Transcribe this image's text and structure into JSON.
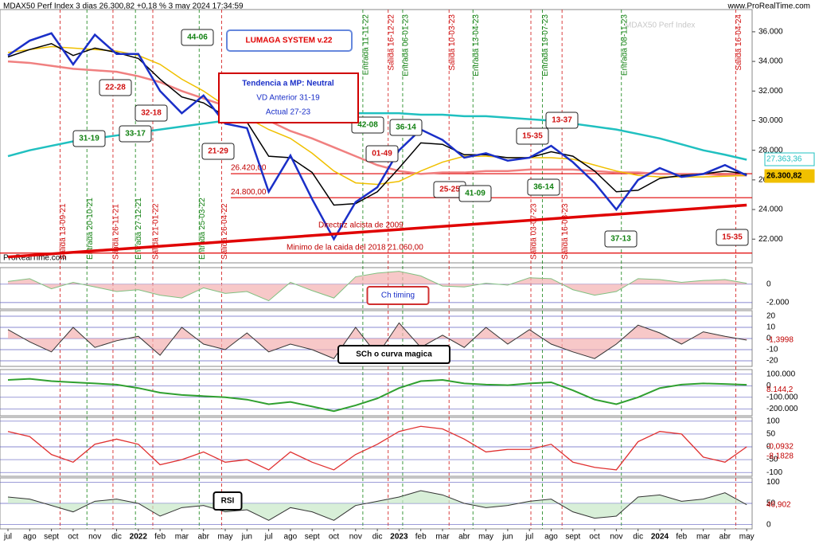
{
  "header": {
    "title": "MDAX50 Perf Index 3 dias 26.300,82 +0,18 % 3 may 2024 17:34:59",
    "site": "www.ProRealTime.com",
    "watermark": "MDAX50 Perf Index",
    "footer": "ProRealTime.com"
  },
  "chart_data": [
    {
      "type": "line",
      "categories": [
        "jul",
        "ago",
        "sept",
        "oct",
        "nov",
        "dic",
        "2022",
        "feb",
        "mar",
        "abr",
        "may",
        "jun",
        "jul",
        "ago",
        "sept",
        "oct",
        "nov",
        "dic",
        "2023",
        "feb",
        "mar",
        "abr",
        "may",
        "jun",
        "jul",
        "ago",
        "sept",
        "oct",
        "nov",
        "dic",
        "2024",
        "feb",
        "mar",
        "abr",
        "may"
      ],
      "ylim": [
        20400,
        37500
      ],
      "yticks": [
        {
          "value": 22000,
          "label": "22.000"
        },
        {
          "value": 24000,
          "label": "24.000"
        },
        {
          "value": 26000,
          "label": "26.000"
        },
        {
          "value": 28000,
          "label": "28.000"
        },
        {
          "value": 30000,
          "label": "30.000"
        },
        {
          "value": 32000,
          "label": "32.000"
        },
        {
          "value": 34000,
          "label": "34.000"
        },
        {
          "value": 36000,
          "label": "36.000"
        }
      ],
      "series": [
        {
          "color": "#f08080",
          "values": [
            34000,
            33900,
            33700,
            33500,
            33400,
            33300,
            33000,
            32600,
            32000,
            31500,
            31000,
            30500,
            30000,
            29300,
            28800,
            28200,
            27600,
            27000,
            26600,
            26400,
            26500,
            26500,
            26600,
            26600,
            26700,
            26700,
            26700,
            26600,
            26500,
            26500,
            26400,
            26400,
            26400,
            26300,
            26300
          ]
        },
        {
          "color": "#20c0c0",
          "values": [
            27600,
            28000,
            28300,
            28600,
            28800,
            29000,
            29200,
            29400,
            29600,
            29800,
            30000,
            30100,
            30200,
            30300,
            30400,
            30400,
            30500,
            30500,
            30500,
            30400,
            30400,
            30300,
            30300,
            30200,
            30100,
            30000,
            29800,
            29600,
            29400,
            29100,
            28800,
            28400,
            28000,
            27700,
            27363
          ]
        },
        {
          "color": "#f0c000",
          "values": [
            34600,
            34800,
            35000,
            34900,
            34800,
            34700,
            34400,
            33800,
            32800,
            32000,
            31000,
            30200,
            29400,
            28800,
            27800,
            26600,
            25800,
            25700,
            25900,
            26600,
            27200,
            27600,
            27600,
            27500,
            27500,
            27500,
            27400,
            27000,
            26600,
            26300,
            26200,
            26200,
            26200,
            26250,
            26300
          ]
        },
        {
          "color": "#000000",
          "values": [
            34300,
            34800,
            35200,
            34400,
            34900,
            34600,
            34200,
            32800,
            31600,
            31200,
            30300,
            29900,
            27600,
            27500,
            26500,
            24300,
            24400,
            25200,
            26800,
            28500,
            28400,
            27700,
            27700,
            27500,
            27500,
            27900,
            27600,
            26600,
            25200,
            25300,
            26100,
            26300,
            26400,
            26600,
            26400
          ]
        },
        {
          "color": "#1a2fc8",
          "values": [
            34400,
            35400,
            35900,
            33800,
            35800,
            34500,
            34500,
            32000,
            30500,
            31700,
            29800,
            29500,
            25200,
            27650,
            24700,
            22000,
            24500,
            25500,
            28000,
            29400,
            28700,
            27500,
            27800,
            27300,
            27500,
            28300,
            27200,
            25800,
            24000,
            26000,
            26800,
            26200,
            26400,
            27000,
            26300
          ]
        }
      ],
      "levels": [
        {
          "value": 26420,
          "label": "26.420,00"
        },
        {
          "value": 24800,
          "label": "24.800,00"
        },
        {
          "value": 21060,
          "label": "Minimo de la caida del 2018  21.060,00"
        }
      ],
      "trend": {
        "label": "Directriz alcista de 2009",
        "values": [
          20800,
          24300
        ],
        "color": "#e00000"
      },
      "exit_color": "#d01010",
      "entry_color": "#108010",
      "exits": [
        "Salida 13-09-21",
        "Salida 26-11-21",
        "Salida 21-01-22",
        "Salida 26-04-22",
        "Salida 16-12-22",
        "Salida 10-03-23",
        "Salida 03-07-23",
        "Salida 16-08-23",
        "Salida 16-04-24"
      ],
      "entries": [
        "Entrada 20-10-21",
        "Entrada 27-12-21",
        "Entrada 25-03-22",
        "Entrada 11-11-22",
        "Entrada 06-01-23",
        "Entrada 13-04-23",
        "Entrada 19-07-23",
        "Entrada 08-11-23"
      ],
      "boxes": [
        {
          "label": "44-06",
          "color": "#108010"
        },
        {
          "label": "22-28",
          "color": "#d01010"
        },
        {
          "label": "32-18",
          "color": "#d01010"
        },
        {
          "label": "31-19",
          "color": "#108010"
        },
        {
          "label": "33-17",
          "color": "#108010"
        },
        {
          "label": "21-29",
          "color": "#d01010"
        },
        {
          "label": "42-08",
          "color": "#108010"
        },
        {
          "label": "36-14",
          "color": "#108010"
        },
        {
          "label": "01-49",
          "color": "#d01010"
        },
        {
          "label": "15-35",
          "color": "#d01010"
        },
        {
          "label": "13-37",
          "color": "#d01010"
        },
        {
          "label": "25-25",
          "color": "#d01010"
        },
        {
          "label": "41-09",
          "color": "#108010"
        },
        {
          "label": "36-14",
          "color": "#108010"
        },
        {
          "label": "37-13",
          "color": "#108010"
        },
        {
          "label": "15-35",
          "color": "#d01010"
        }
      ],
      "system": "LUMAGA SYSTEM v.22",
      "trend_box": [
        "Tendencia a MP: Neutral",
        "VD Anterior 31-19",
        "Actual 27-23"
      ],
      "last_labels": [
        {
          "text": "27.363,36",
          "color": "#20c0c0"
        },
        {
          "text": "26.300,82",
          "color": "#f0c000"
        }
      ]
    },
    {
      "type": "area",
      "title": "Ch timing",
      "ylim": [
        -2700,
        1800
      ],
      "yticks": [
        0,
        {
          "value": -2000,
          "label": "-2.000"
        }
      ],
      "values": [
        300,
        600,
        -500,
        200,
        -300,
        -800,
        -600,
        -1200,
        -1500,
        -400,
        -1000,
        -800,
        -1800,
        200,
        -700,
        -1500,
        800,
        1200,
        1400,
        900,
        -200,
        -300,
        100,
        -100,
        700,
        600,
        -600,
        -1200,
        -800,
        600,
        500,
        200,
        400,
        500,
        100
      ]
    },
    {
      "type": "area",
      "title": "SCh o curva magica",
      "ylim": [
        -25,
        25
      ],
      "yticks": [
        20,
        10,
        0,
        -10,
        -20
      ],
      "values": [
        8,
        -3,
        -12,
        10,
        -8,
        -2,
        2,
        -15,
        10,
        -5,
        -10,
        5,
        -12,
        -5,
        -10,
        -18,
        10,
        -15,
        14,
        -8,
        3,
        -8,
        10,
        -5,
        8,
        -5,
        -12,
        -18,
        -5,
        12,
        5,
        -5,
        6,
        2,
        -1.3998
      ],
      "last_label": "-1,3998"
    },
    {
      "type": "line",
      "ylim": [
        -260000,
        140000
      ],
      "yticks": [
        {
          "value": 100000,
          "label": "100.000"
        },
        0,
        {
          "value": -100000,
          "label": "-100.000"
        },
        {
          "value": -200000,
          "label": "-200.000"
        }
      ],
      "values": [
        50000,
        60000,
        40000,
        30000,
        20000,
        10000,
        -20000,
        -60000,
        -80000,
        -90000,
        -100000,
        -120000,
        -160000,
        -140000,
        -180000,
        -220000,
        -170000,
        -110000,
        -20000,
        40000,
        50000,
        20000,
        10000,
        5000,
        20000,
        30000,
        -40000,
        -120000,
        -160000,
        -100000,
        -20000,
        10000,
        20000,
        15000,
        8144.2
      ],
      "last_label": "8.144,2"
    },
    {
      "type": "line",
      "ylim": [
        -115,
        115
      ],
      "yticks": [
        100,
        50,
        0,
        -50,
        -100
      ],
      "values": [
        60,
        40,
        -30,
        -60,
        10,
        30,
        10,
        -70,
        -50,
        -20,
        -60,
        -50,
        -90,
        -20,
        -60,
        -90,
        -30,
        10,
        60,
        80,
        70,
        30,
        -20,
        -10,
        -10,
        10,
        -60,
        -80,
        -90,
        20,
        60,
        50,
        -40,
        -60,
        -0.0932
      ],
      "last_label": "-0,0932",
      "signal_label": "-8,1828"
    },
    {
      "type": "area",
      "title": "RSI",
      "ylim": [
        -10,
        110
      ],
      "yticks": [
        100,
        50,
        0
      ],
      "values": [
        65,
        60,
        45,
        30,
        55,
        60,
        50,
        20,
        40,
        45,
        30,
        35,
        10,
        40,
        30,
        10,
        45,
        55,
        65,
        80,
        70,
        50,
        40,
        45,
        55,
        60,
        30,
        15,
        20,
        65,
        70,
        55,
        60,
        75,
        46.902
      ],
      "last_label": "46,902"
    }
  ]
}
